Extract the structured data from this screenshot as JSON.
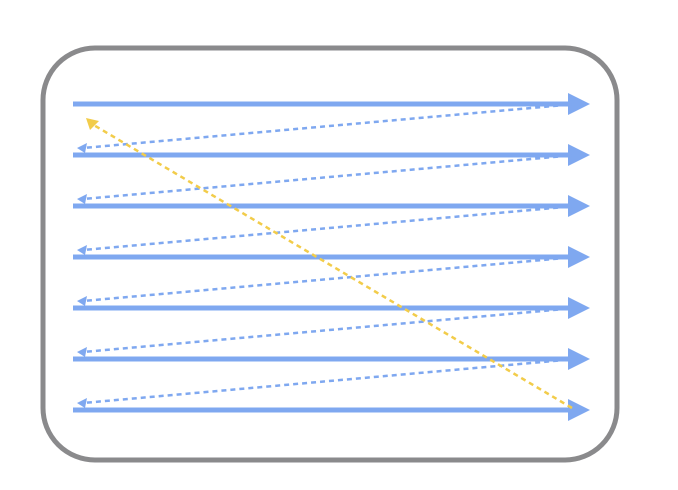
{
  "diagram": {
    "kind": "raster-scan-pattern",
    "scan_lines": 7,
    "retrace_lines": 6,
    "frame_return_lines": 1,
    "colors": {
      "frame_border": "#8a8a8c",
      "background": "#ffffff",
      "scan_line": "#7fa8f0",
      "retrace_line": "#7fa8f0",
      "frame_return": "#f2cc4a"
    },
    "line_styles": {
      "scan": "solid",
      "retrace": "dashed",
      "frame_return": "dashed"
    },
    "icons": {
      "arrowhead": "arrow-head-icon"
    }
  }
}
